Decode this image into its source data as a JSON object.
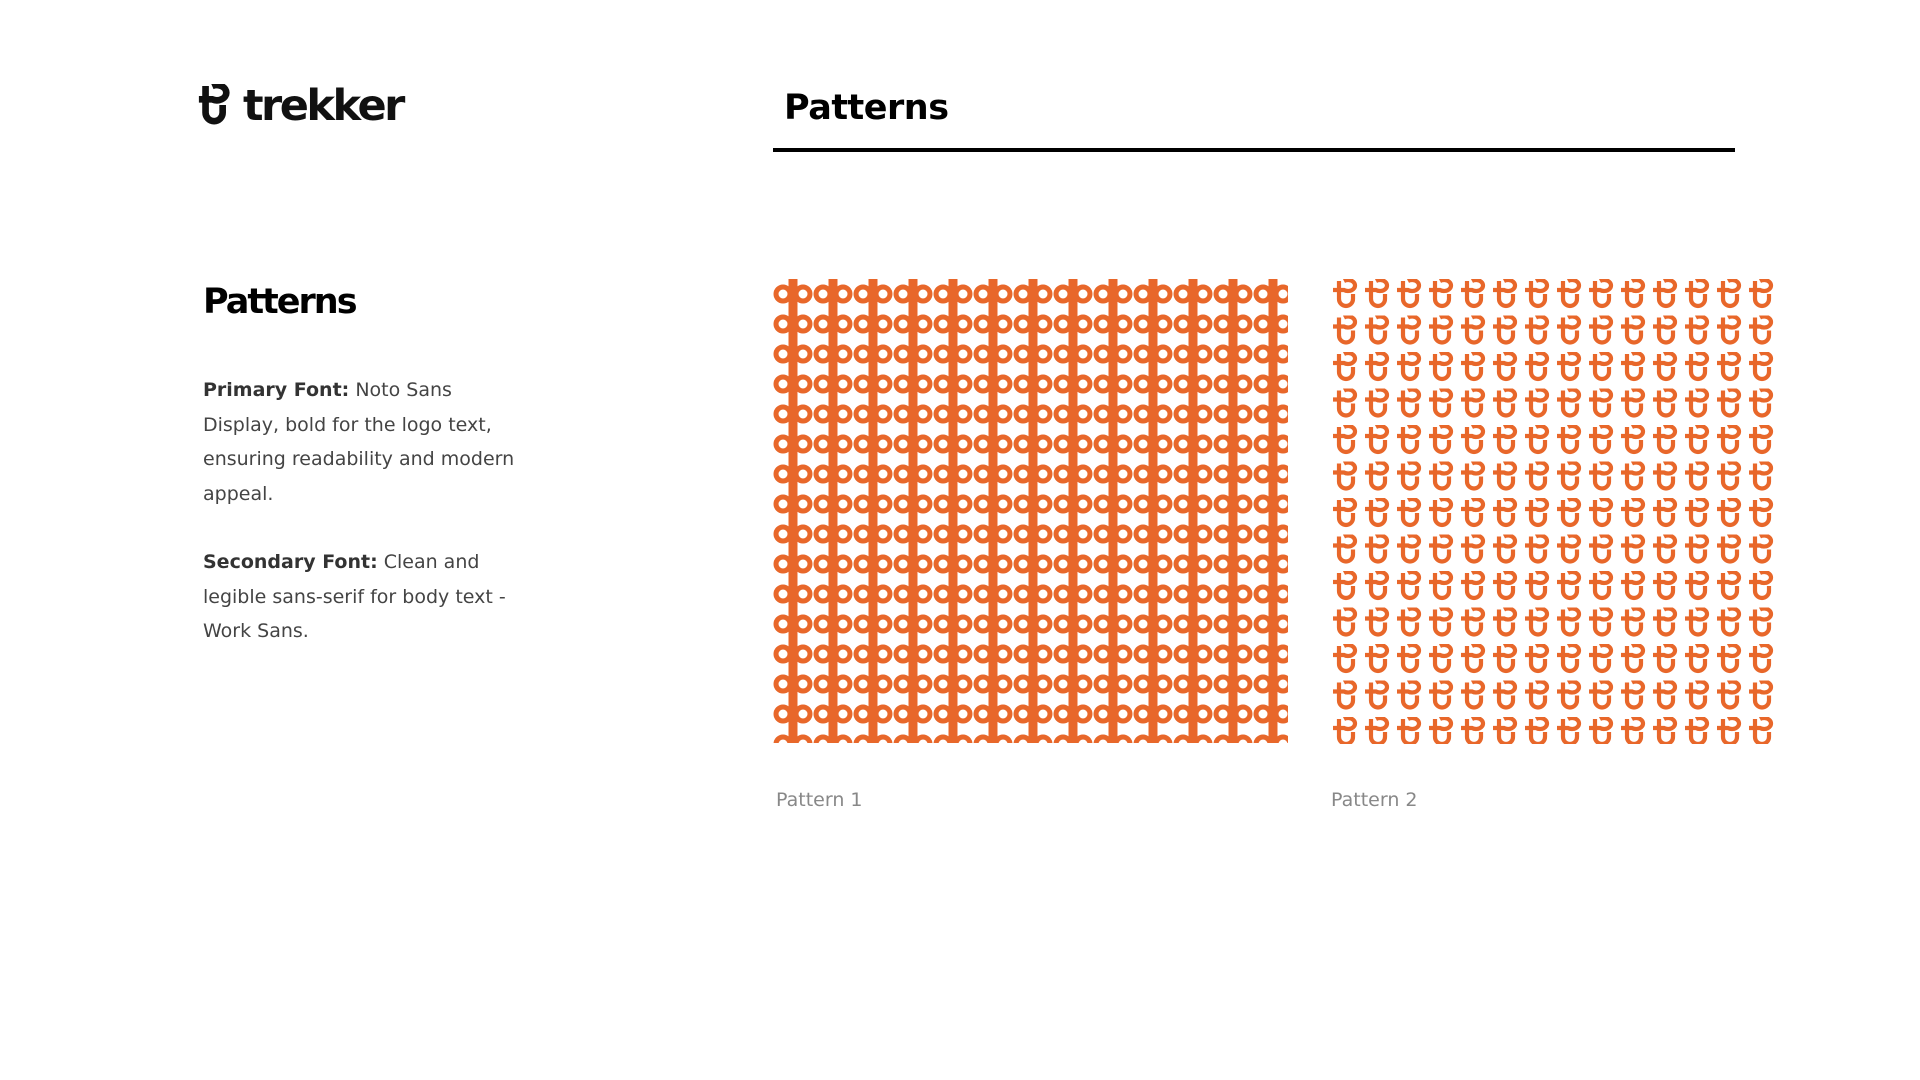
{
  "brand": {
    "name": "trekker",
    "logo_icon": "trekker-mark-icon"
  },
  "header": {
    "title": "Patterns"
  },
  "section": {
    "title": "Patterns",
    "primary_label": "Primary Font:",
    "primary_text": " Noto Sans Display, bold for the logo text, ensuring readability and modern appeal.",
    "secondary_label": "Secondary Font:",
    "secondary_text": " Clean and legible sans-serif for body text - Work Sans."
  },
  "patterns": [
    {
      "caption": "Pattern 1",
      "icon": "dp-pattern-icon"
    },
    {
      "caption": "Pattern 2",
      "icon": "trekker-mark-pattern-icon"
    }
  ],
  "colors": {
    "accent": "#E8672A",
    "text": "#000000",
    "body": "#444444",
    "caption": "#888888"
  }
}
